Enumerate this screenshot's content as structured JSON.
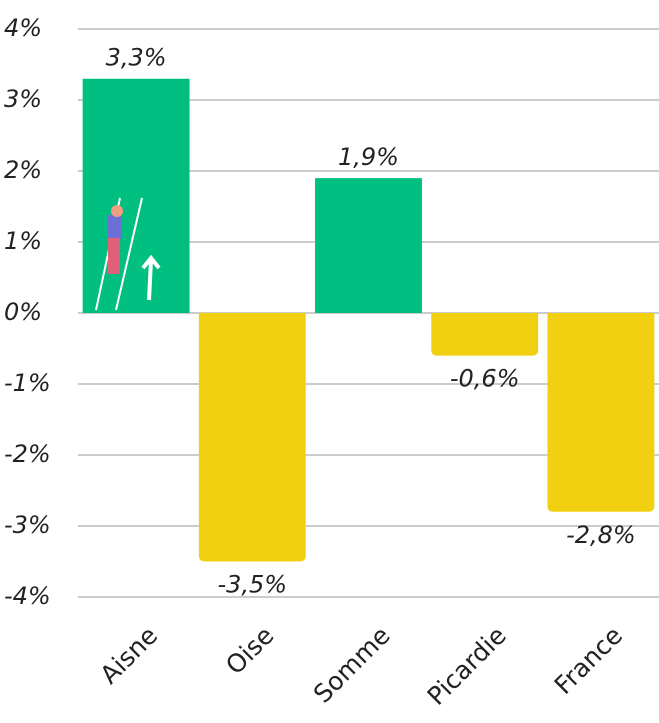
{
  "chart_data": {
    "type": "bar",
    "categories": [
      "Aisne",
      "Oise",
      "Somme",
      "Picardie",
      "France"
    ],
    "values": [
      3.3,
      -3.5,
      1.9,
      -0.6,
      -2.8
    ],
    "value_labels": [
      "3,3%",
      "-3,5%",
      "1,9%",
      "-0,6%",
      "-2,8%"
    ],
    "colors": [
      "#00bf80",
      "#f0d010",
      "#00bf80",
      "#f0d010",
      "#f0d010"
    ],
    "ylim": [
      -4,
      4
    ],
    "yticks": [
      {
        "value": 4,
        "label": "4%"
      },
      {
        "value": 3,
        "label": "3%"
      },
      {
        "value": 2,
        "label": "2%"
      },
      {
        "value": 1,
        "label": "1%"
      },
      {
        "value": 0,
        "label": "0%"
      },
      {
        "value": -1,
        "label": "-1%"
      },
      {
        "value": -2,
        "label": "-2%"
      },
      {
        "value": -3,
        "label": "-3%"
      },
      {
        "value": -4,
        "label": "-4%"
      }
    ],
    "grid": true
  }
}
